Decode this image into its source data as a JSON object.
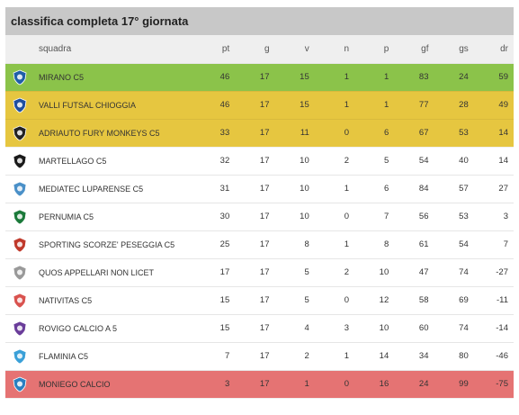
{
  "title": "classifica completa 17° giornata",
  "columns": [
    "squadra",
    "pt",
    "g",
    "v",
    "n",
    "p",
    "gf",
    "gs",
    "dr"
  ],
  "rows": [
    {
      "team": "MIRANO C5",
      "pt": "46",
      "g": "17",
      "v": "15",
      "n": "1",
      "p": "1",
      "gf": "83",
      "gs": "24",
      "dr": "59",
      "highlight": "green",
      "icon": "mirano-logo-icon",
      "color": "#1f5fa8"
    },
    {
      "team": "VALLI FUTSAL CHIOGGIA",
      "pt": "46",
      "g": "17",
      "v": "15",
      "n": "1",
      "p": "1",
      "gf": "77",
      "gs": "28",
      "dr": "49",
      "highlight": "yellow",
      "icon": "valli-futsal-logo-icon",
      "color": "#1e4fa0"
    },
    {
      "team": "ADRIAUTO FURY MONKEYS C5",
      "pt": "33",
      "g": "17",
      "v": "11",
      "n": "0",
      "p": "6",
      "gf": "67",
      "gs": "53",
      "dr": "14",
      "highlight": "yellow",
      "icon": "fury-monkeys-logo-icon",
      "color": "#222222"
    },
    {
      "team": "MARTELLAGO C5",
      "pt": "32",
      "g": "17",
      "v": "10",
      "n": "2",
      "p": "5",
      "gf": "54",
      "gs": "40",
      "dr": "14",
      "highlight": "",
      "icon": "martellago-logo-icon",
      "color": "#1a1a1a"
    },
    {
      "team": "MEDIATEC LUPARENSE C5",
      "pt": "31",
      "g": "17",
      "v": "10",
      "n": "1",
      "p": "6",
      "gf": "84",
      "gs": "57",
      "dr": "27",
      "highlight": "",
      "icon": "luparense-logo-icon",
      "color": "#4a90c8"
    },
    {
      "team": "PERNUMIA C5",
      "pt": "30",
      "g": "17",
      "v": "10",
      "n": "0",
      "p": "7",
      "gf": "56",
      "gs": "53",
      "dr": "3",
      "highlight": "",
      "icon": "pernumia-logo-icon",
      "color": "#1b7a3a"
    },
    {
      "team": "SPORTING SCORZE' PESEGGIA C5",
      "pt": "25",
      "g": "17",
      "v": "8",
      "n": "1",
      "p": "8",
      "gf": "61",
      "gs": "54",
      "dr": "7",
      "highlight": "",
      "icon": "sporting-scorze-logo-icon",
      "color": "#c0392b"
    },
    {
      "team": "QUOS APPELLARI NON LICET",
      "pt": "17",
      "g": "17",
      "v": "5",
      "n": "2",
      "p": "10",
      "gf": "47",
      "gs": "74",
      "dr": "-27",
      "highlight": "",
      "icon": "quos-logo-icon",
      "color": "#999999"
    },
    {
      "team": "NATIVITAS C5",
      "pt": "15",
      "g": "17",
      "v": "5",
      "n": "0",
      "p": "12",
      "gf": "58",
      "gs": "69",
      "dr": "-11",
      "highlight": "",
      "icon": "nativitas-logo-icon",
      "color": "#d9534f"
    },
    {
      "team": "ROVIGO CALCIO A 5",
      "pt": "15",
      "g": "17",
      "v": "4",
      "n": "3",
      "p": "10",
      "gf": "60",
      "gs": "74",
      "dr": "-14",
      "highlight": "",
      "icon": "rovigo-logo-icon",
      "color": "#6a3d9a"
    },
    {
      "team": "FLAMINIA C5",
      "pt": "7",
      "g": "17",
      "v": "2",
      "n": "1",
      "p": "14",
      "gf": "34",
      "gs": "80",
      "dr": "-46",
      "highlight": "",
      "icon": "flaminia-logo-icon",
      "color": "#3aa0d8"
    },
    {
      "team": "MONIEGO CALCIO",
      "pt": "3",
      "g": "17",
      "v": "1",
      "n": "0",
      "p": "16",
      "gf": "24",
      "gs": "99",
      "dr": "-75",
      "highlight": "red",
      "icon": "moniego-logo-icon",
      "color": "#2a7fc0"
    }
  ]
}
